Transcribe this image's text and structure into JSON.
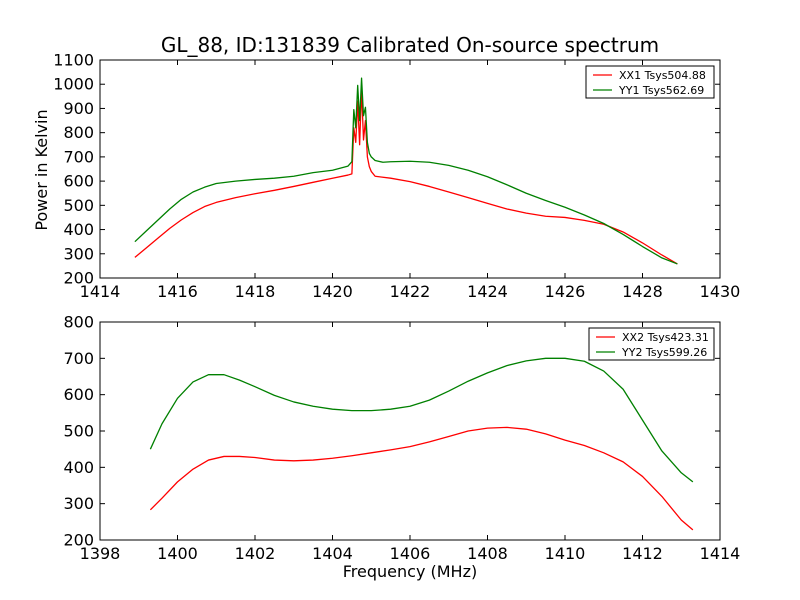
{
  "chart_data": [
    {
      "type": "line",
      "title": "GL_88, ID:131839 Calibrated On-source spectrum",
      "xlabel": "",
      "ylabel": "Power in Kelvin",
      "xlim": [
        1414,
        1430
      ],
      "ylim": [
        200,
        1100
      ],
      "xticks": [
        1414,
        1416,
        1418,
        1420,
        1422,
        1424,
        1426,
        1428,
        1430
      ],
      "yticks": [
        200,
        300,
        400,
        500,
        600,
        700,
        800,
        900,
        1000,
        1100
      ],
      "legend_position": "top-right",
      "grid": false,
      "series": [
        {
          "name": "XX1 Tsys504.88",
          "color": "#ff0000",
          "x": [
            1414.9,
            1415.2,
            1415.5,
            1415.8,
            1416.1,
            1416.4,
            1416.7,
            1417.0,
            1417.5,
            1418.0,
            1418.5,
            1419.0,
            1419.5,
            1420.0,
            1420.4,
            1420.5,
            1420.55,
            1420.6,
            1420.65,
            1420.7,
            1420.75,
            1420.8,
            1420.85,
            1420.9,
            1420.95,
            1421.0,
            1421.1,
            1421.5,
            1422.0,
            1422.5,
            1423.0,
            1423.5,
            1424.0,
            1424.5,
            1425.0,
            1425.5,
            1426.0,
            1426.5,
            1427.0,
            1427.5,
            1428.0,
            1428.5,
            1428.9
          ],
          "y": [
            285,
            325,
            365,
            405,
            440,
            470,
            495,
            512,
            532,
            548,
            562,
            578,
            595,
            612,
            625,
            630,
            820,
            760,
            930,
            750,
            980,
            770,
            850,
            700,
            660,
            640,
            620,
            612,
            598,
            578,
            555,
            532,
            508,
            485,
            468,
            455,
            450,
            438,
            422,
            390,
            345,
            295,
            258
          ]
        },
        {
          "name": "YY1 Tsys562.69",
          "color": "#008000",
          "x": [
            1414.9,
            1415.2,
            1415.5,
            1415.8,
            1416.1,
            1416.4,
            1416.7,
            1417.0,
            1417.5,
            1418.0,
            1418.5,
            1419.0,
            1419.5,
            1420.0,
            1420.4,
            1420.5,
            1420.55,
            1420.6,
            1420.65,
            1420.7,
            1420.75,
            1420.8,
            1420.85,
            1420.9,
            1420.95,
            1421.0,
            1421.1,
            1421.3,
            1421.5,
            1422.0,
            1422.5,
            1423.0,
            1423.5,
            1424.0,
            1424.5,
            1425.0,
            1425.5,
            1426.0,
            1426.5,
            1427.0,
            1427.5,
            1428.0,
            1428.5,
            1428.9
          ],
          "y": [
            350,
            395,
            440,
            485,
            525,
            555,
            575,
            590,
            600,
            607,
            612,
            620,
            635,
            645,
            662,
            680,
            895,
            820,
            995,
            850,
            1025,
            870,
            905,
            760,
            715,
            700,
            685,
            678,
            680,
            682,
            678,
            665,
            645,
            618,
            585,
            550,
            520,
            492,
            460,
            425,
            380,
            330,
            283,
            258
          ]
        }
      ]
    },
    {
      "type": "line",
      "title": "",
      "xlabel": "Frequency (MHz)",
      "ylabel": "",
      "xlim": [
        1398,
        1414
      ],
      "ylim": [
        200,
        800
      ],
      "xticks": [
        1398,
        1400,
        1402,
        1404,
        1406,
        1408,
        1410,
        1412,
        1414
      ],
      "yticks": [
        200,
        300,
        400,
        500,
        600,
        700,
        800
      ],
      "legend_position": "top-right",
      "grid": false,
      "series": [
        {
          "name": "XX2 Tsys423.31",
          "color": "#ff0000",
          "x": [
            1399.3,
            1399.6,
            1400.0,
            1400.4,
            1400.8,
            1401.2,
            1401.6,
            1402.0,
            1402.5,
            1403.0,
            1403.5,
            1404.0,
            1404.5,
            1405.0,
            1405.5,
            1406.0,
            1406.5,
            1407.0,
            1407.5,
            1408.0,
            1408.5,
            1409.0,
            1409.5,
            1410.0,
            1410.5,
            1411.0,
            1411.5,
            1412.0,
            1412.5,
            1413.0,
            1413.3
          ],
          "y": [
            283,
            315,
            360,
            395,
            420,
            430,
            430,
            427,
            420,
            418,
            420,
            425,
            432,
            440,
            448,
            457,
            470,
            485,
            500,
            508,
            510,
            505,
            492,
            475,
            460,
            440,
            415,
            375,
            320,
            255,
            228
          ]
        },
        {
          "name": "YY2 Tsys599.26",
          "color": "#008000",
          "x": [
            1399.3,
            1399.6,
            1400.0,
            1400.4,
            1400.8,
            1401.2,
            1401.6,
            1402.0,
            1402.5,
            1403.0,
            1403.5,
            1404.0,
            1404.5,
            1405.0,
            1405.5,
            1406.0,
            1406.5,
            1407.0,
            1407.5,
            1408.0,
            1408.5,
            1409.0,
            1409.5,
            1410.0,
            1410.5,
            1411.0,
            1411.5,
            1412.0,
            1412.5,
            1413.0,
            1413.3
          ],
          "y": [
            450,
            520,
            590,
            635,
            655,
            655,
            640,
            622,
            598,
            580,
            568,
            560,
            556,
            556,
            560,
            568,
            585,
            610,
            637,
            660,
            680,
            693,
            700,
            700,
            692,
            665,
            615,
            530,
            445,
            385,
            360
          ]
        }
      ]
    }
  ]
}
